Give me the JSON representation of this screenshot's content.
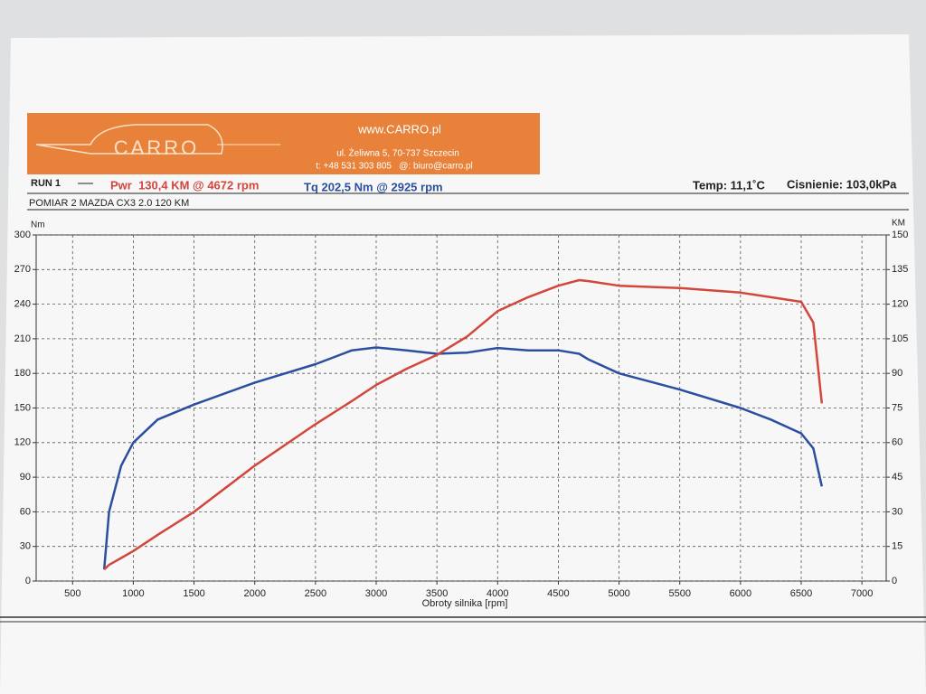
{
  "header": {
    "website": "www.CARRO.pl",
    "logo": "CARRO",
    "address": "ul. Żeliwna 5, 70-737 Szczecin",
    "contact": "t: +48 531 303 805   @: biuro@carro.pl"
  },
  "chart_data": {
    "type": "line",
    "run_label": "RUN 1",
    "power_peak": "Pwr  130,4 KM @ 4672 rpm",
    "torque_peak": "Tq 202,5 Nm @ 2925 rpm",
    "temperature": "Temp: 11,1˚C",
    "pressure": "Cisnienie: 103,0kPa",
    "subtitle": "POMIAR 2 MAZDA CX3 2.0 120 KM",
    "ylabel": "Nm",
    "y2label": "KM",
    "xlabel": "Obroty silnika [rpm]",
    "x": [
      760,
      800,
      900,
      1000,
      1200,
      1500,
      2000,
      2500,
      2800,
      3000,
      3250,
      3500,
      3750,
      4000,
      4250,
      4500,
      4672,
      4750,
      5000,
      5500,
      6000,
      6250,
      6500,
      6600,
      6670
    ],
    "series": [
      {
        "color": "#2b4fa0",
        "values": [
          10,
          60,
          100,
          120,
          140,
          153,
          172,
          188,
          200,
          202.5,
          200,
          197,
          198,
          202,
          200,
          200,
          197,
          192,
          180,
          166,
          150,
          140,
          128,
          115,
          82
        ]
      },
      {
        "color": "#d2463c",
        "axis": "y2",
        "values": [
          5,
          7,
          10,
          13,
          20,
          30,
          50,
          68,
          78,
          85,
          92,
          98,
          106,
          117,
          123,
          128,
          130.4,
          130,
          128,
          127,
          125,
          123,
          121,
          112,
          77
        ]
      }
    ],
    "xlim": [
      200,
      7200
    ],
    "xticks": [
      500,
      1000,
      1500,
      2000,
      2500,
      3000,
      3500,
      4000,
      4500,
      5000,
      5500,
      6000,
      6500,
      7000
    ],
    "ylim": [
      0,
      300
    ],
    "yticks": [
      0,
      30,
      60,
      90,
      120,
      150,
      180,
      210,
      240,
      270,
      300
    ],
    "y2lim": [
      0,
      150
    ],
    "y2ticks": [
      0,
      15,
      30,
      45,
      60,
      75,
      90,
      105,
      120,
      135,
      150
    ],
    "grid": true
  }
}
